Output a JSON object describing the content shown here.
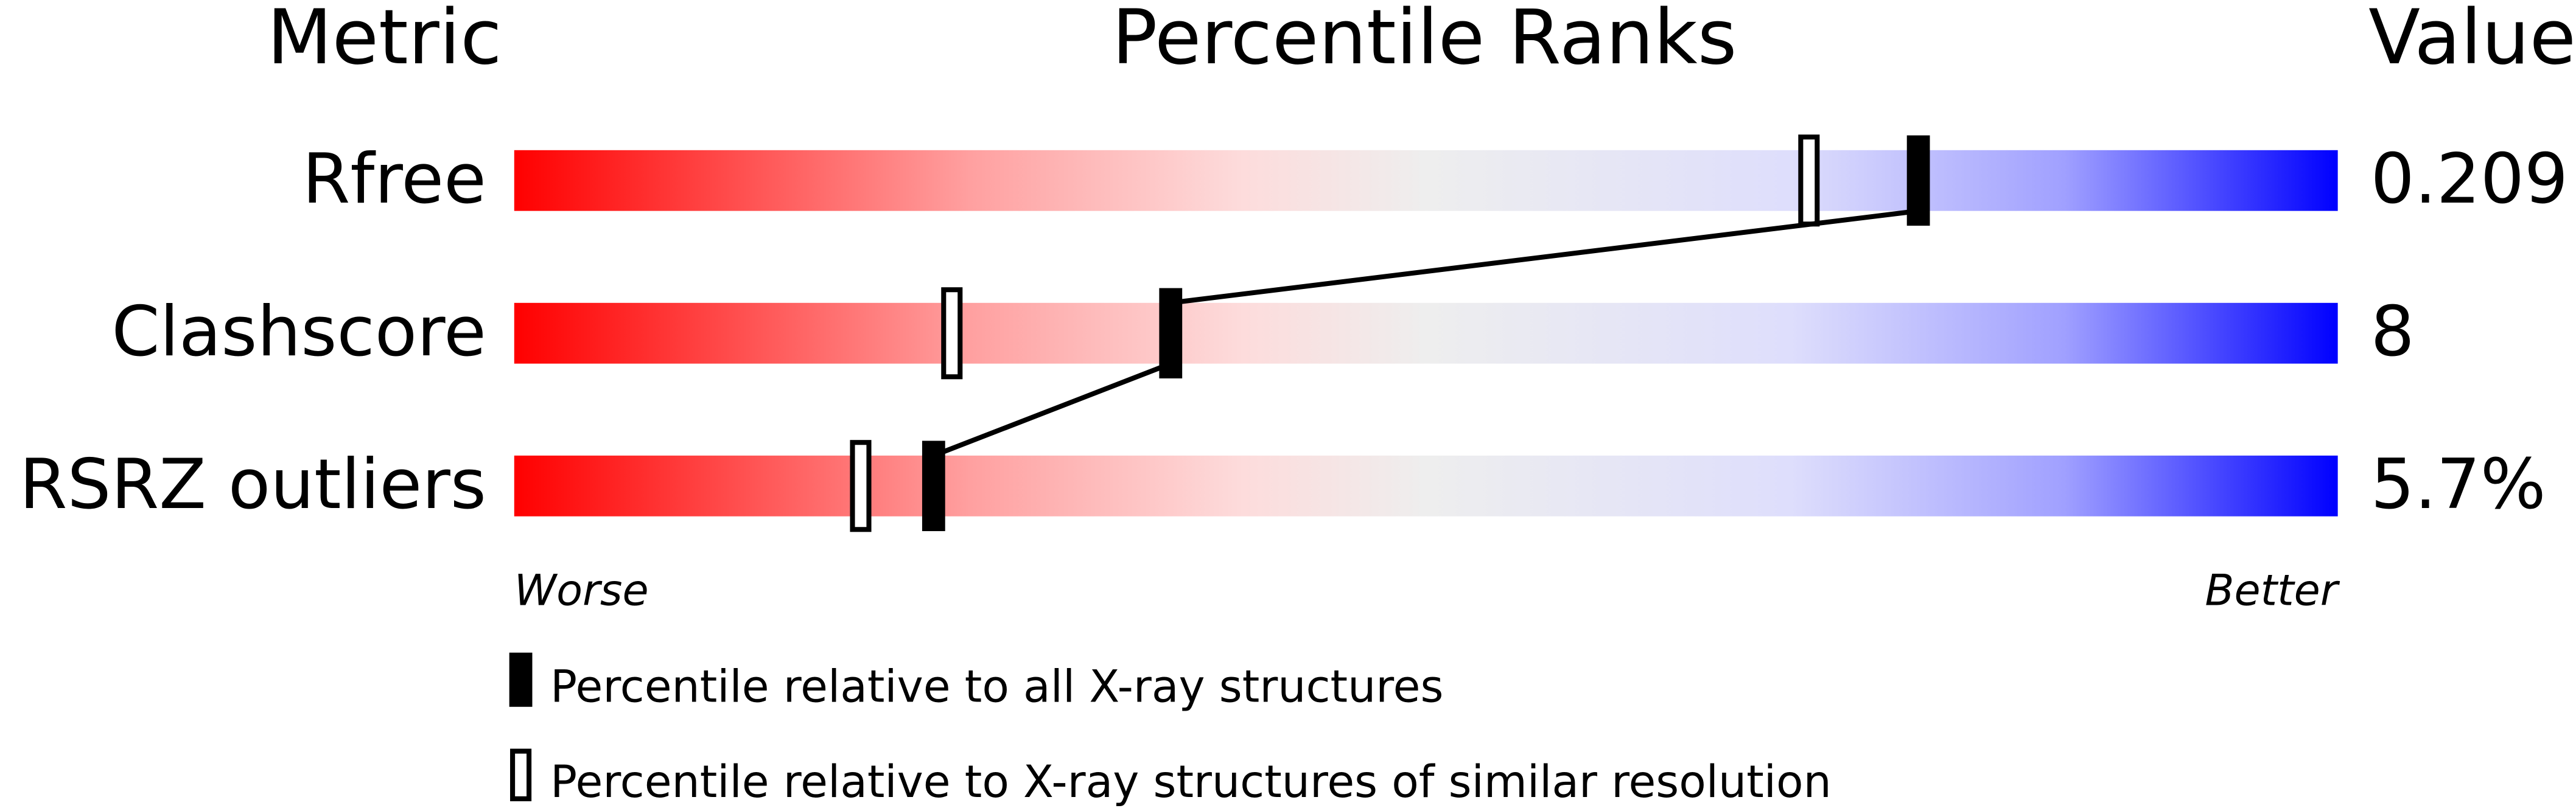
{
  "chart_data": {
    "type": "percentile-ranks",
    "headers": {
      "metric": "Metric",
      "title": "Percentile Ranks",
      "value": "Value"
    },
    "xlim": [
      0,
      100
    ],
    "axis": {
      "left": "Worse",
      "right": "Better"
    },
    "gradient_colors": [
      "#ff0000",
      "#ffa0a0",
      "#fddcdc",
      "#eeeeee",
      "#dedefc",
      "#a0a0ff",
      "#0000ff"
    ],
    "metrics": [
      {
        "name": "Rfree",
        "value": "0.209",
        "percentile_all": 77,
        "percentile_similar": 71
      },
      {
        "name": "Clashscore",
        "value": "8",
        "percentile_all": 36,
        "percentile_similar": 24
      },
      {
        "name": "RSRZ outliers",
        "value": "5.7%",
        "percentile_all": 23,
        "percentile_similar": 19
      }
    ],
    "legend": [
      {
        "marker": "filled",
        "label": "Percentile relative to all X-ray structures"
      },
      {
        "marker": "open",
        "label": "Percentile relative to X-ray structures of similar resolution"
      }
    ]
  }
}
